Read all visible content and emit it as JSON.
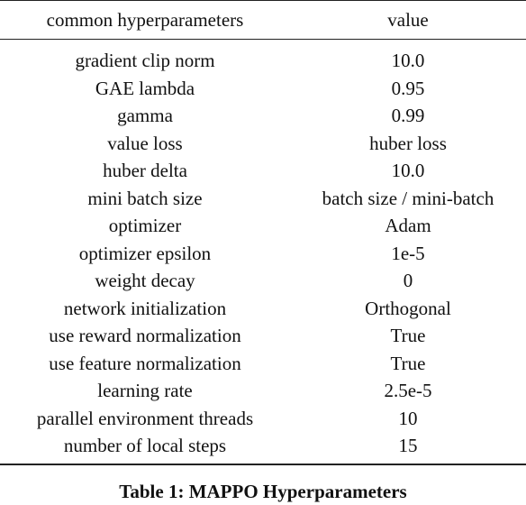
{
  "table": {
    "headers": [
      "common hyperparameters",
      "value"
    ],
    "rows": [
      [
        "gradient clip norm",
        "10.0"
      ],
      [
        "GAE lambda",
        "0.95"
      ],
      [
        "gamma",
        "0.99"
      ],
      [
        "value loss",
        "huber loss"
      ],
      [
        "huber delta",
        "10.0"
      ],
      [
        "mini batch size",
        "batch size / mini-batch"
      ],
      [
        "optimizer",
        "Adam"
      ],
      [
        "optimizer epsilon",
        "1e-5"
      ],
      [
        "weight decay",
        "0"
      ],
      [
        "network initialization",
        "Orthogonal"
      ],
      [
        "use reward normalization",
        "True"
      ],
      [
        "use feature normalization",
        "True"
      ],
      [
        "learning rate",
        "2.5e-5"
      ],
      [
        "parallel environment threads",
        "10"
      ],
      [
        "number of local steps",
        "15"
      ]
    ]
  },
  "caption": "Table 1: MAPPO Hyperparameters"
}
